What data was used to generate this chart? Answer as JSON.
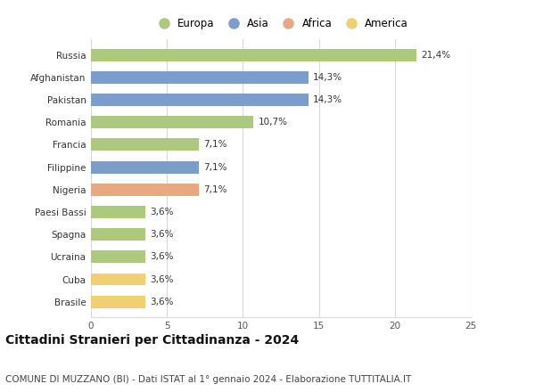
{
  "countries": [
    "Russia",
    "Afghanistan",
    "Pakistan",
    "Romania",
    "Francia",
    "Filippine",
    "Nigeria",
    "Paesi Bassi",
    "Spagna",
    "Ucraina",
    "Cuba",
    "Brasile"
  ],
  "values": [
    21.4,
    14.3,
    14.3,
    10.7,
    7.1,
    7.1,
    7.1,
    3.6,
    3.6,
    3.6,
    3.6,
    3.6
  ],
  "labels": [
    "21,4%",
    "14,3%",
    "14,3%",
    "10,7%",
    "7,1%",
    "7,1%",
    "7,1%",
    "3,6%",
    "3,6%",
    "3,6%",
    "3,6%",
    "3,6%"
  ],
  "continents": [
    "Europa",
    "Asia",
    "Asia",
    "Europa",
    "Europa",
    "Asia",
    "Africa",
    "Europa",
    "Europa",
    "Europa",
    "America",
    "America"
  ],
  "colors": {
    "Europa": "#adc97e",
    "Asia": "#7b9dcc",
    "Africa": "#e8a882",
    "America": "#f0d070"
  },
  "legend_order": [
    "Europa",
    "Asia",
    "Africa",
    "America"
  ],
  "xlim": [
    0,
    25
  ],
  "xticks": [
    0,
    5,
    10,
    15,
    20,
    25
  ],
  "title": "Cittadini Stranieri per Cittadinanza - 2024",
  "subtitle": "COMUNE DI MUZZANO (BI) - Dati ISTAT al 1° gennaio 2024 - Elaborazione TUTTITALIA.IT",
  "title_fontsize": 10,
  "subtitle_fontsize": 7.5,
  "label_fontsize": 7.5,
  "tick_fontsize": 7.5,
  "legend_fontsize": 8.5,
  "bg_color": "#ffffff",
  "grid_color": "#d8d8d8",
  "bar_height": 0.55
}
